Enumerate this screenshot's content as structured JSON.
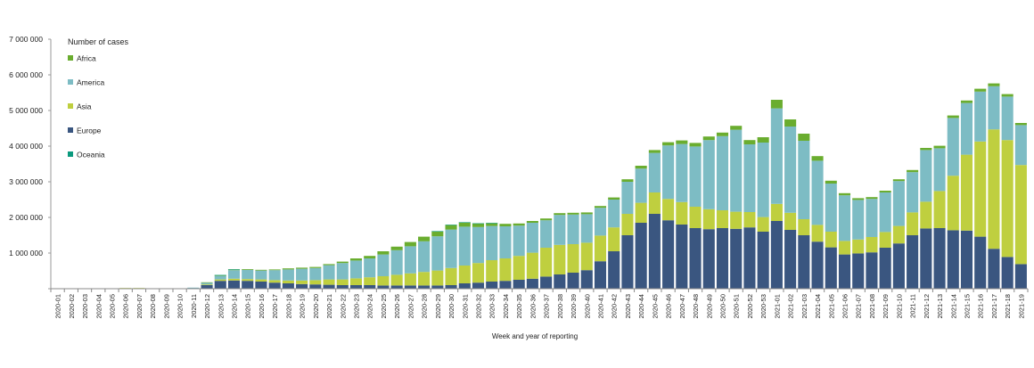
{
  "chart_data": {
    "type": "bar",
    "stacked": true,
    "title": "",
    "xlabel": "Week and year of reporting",
    "ylabel": "",
    "ylim": [
      0,
      7000000
    ],
    "yticks": [
      0,
      1000000,
      2000000,
      3000000,
      4000000,
      5000000,
      6000000,
      7000000
    ],
    "ytick_labels": [
      "",
      "1 000 000",
      "2 000 000",
      "3 000 000",
      "4 000 000",
      "5 000 000",
      "6 000 000",
      "7 000 000"
    ],
    "legend_title": "Number of cases",
    "legend_position": "top-left",
    "colors": {
      "Europe": "#3a5680",
      "Asia": "#bfcf3f",
      "America": "#7dbcc4",
      "Africa": "#6aad2f",
      "Oceania": "#0b9a7e"
    },
    "legend_order": [
      "Africa",
      "America",
      "Asia",
      "Europe",
      "Oceania"
    ],
    "categories": [
      "2020-01",
      "2020-02",
      "2020-03",
      "2020-04",
      "2020-05",
      "2020-06",
      "2020-07",
      "2020-08",
      "2020-09",
      "2020-10",
      "2020-11",
      "2020-12",
      "2020-13",
      "2020-14",
      "2020-15",
      "2020-16",
      "2020-17",
      "2020-18",
      "2020-19",
      "2020-20",
      "2020-21",
      "2020-22",
      "2020-23",
      "2020-24",
      "2020-25",
      "2020-26",
      "2020-27",
      "2020-28",
      "2020-29",
      "2020-30",
      "2020-31",
      "2020-32",
      "2020-33",
      "2020-34",
      "2020-35",
      "2020-36",
      "2020-37",
      "2020-38",
      "2020-39",
      "2020-40",
      "2020-41",
      "2020-42",
      "2020-43",
      "2020-44",
      "2020-45",
      "2020-46",
      "2020-47",
      "2020-48",
      "2020-49",
      "2020-50",
      "2020-51",
      "2020-52",
      "2020-53",
      "2021-01",
      "2021-02",
      "2021-03",
      "2021-04",
      "2021-05",
      "2021-06",
      "2021-07",
      "2021-08",
      "2021-09",
      "2021-10",
      "2021-11",
      "2021-12",
      "2021-13",
      "2021-14",
      "2021-15",
      "2021-16",
      "2021-17",
      "2021-18",
      "2021-19"
    ],
    "x_tick_labels": [
      "2020-01",
      "2020-02",
      "2020-03",
      "2020-04",
      "2020-05",
      "2020-06",
      "2020-07",
      "2020-08",
      "2020-09",
      "2020-10",
      "2020-11",
      "2020-12",
      "2020-13",
      "2020-14",
      "2020-15",
      "2020-16",
      "2020-17",
      "2020-18",
      "2020-19",
      "2020-20",
      "2020-21",
      "2020-22",
      "2020-23",
      "2020-24",
      "2020-25",
      "2020-26",
      "2020-27",
      "2020-28",
      "2020-29",
      "2020-30",
      "2020-31",
      "2020-32",
      "2020-33",
      "2020-34",
      "2020-35",
      "2020-36",
      "2020-37",
      "2020-38",
      "2020-39",
      "2020-40",
      "2020-41",
      "2020-42",
      "2020-43",
      "2020-44",
      "2020-45",
      "2020-46",
      "2020-47",
      "2020-48",
      "2020-49",
      "2020-50",
      "2020-51",
      "2020-52",
      "2020-53",
      "2021-01",
      "2021-02",
      "2021-03",
      "2021-04",
      "2021-05",
      "2021-06",
      "2021-07",
      "2021-08",
      "2021-09",
      "2021-10",
      "2021-11",
      "2021-12",
      "2021-13",
      "2021-14",
      "2021-15",
      "2021-16",
      "2021-17",
      "2021-18",
      "2021-19"
    ],
    "series": [
      {
        "name": "Europe",
        "values": [
          0,
          0,
          0,
          0,
          0,
          0,
          0,
          0,
          0,
          0,
          20000,
          100000,
          220000,
          230000,
          220000,
          200000,
          170000,
          150000,
          130000,
          120000,
          110000,
          100000,
          100000,
          100000,
          90000,
          90000,
          90000,
          90000,
          90000,
          100000,
          150000,
          170000,
          200000,
          220000,
          250000,
          280000,
          340000,
          400000,
          450000,
          520000,
          770000,
          1050000,
          1500000,
          1850000,
          2100000,
          1920000,
          1800000,
          1700000,
          1670000,
          1700000,
          1680000,
          1720000,
          1600000,
          1900000,
          1650000,
          1500000,
          1320000,
          1160000,
          960000,
          990000,
          1020000,
          1150000,
          1270000,
          1500000,
          1690000,
          1700000,
          1640000,
          1630000,
          1460000,
          1120000,
          890000,
          690000
        ]
      },
      {
        "name": "Asia",
        "values": [
          0,
          0,
          0,
          0,
          10000,
          20000,
          20000,
          0,
          0,
          0,
          0,
          20000,
          40000,
          50000,
          50000,
          60000,
          70000,
          80000,
          100000,
          120000,
          150000,
          160000,
          190000,
          220000,
          260000,
          300000,
          340000,
          380000,
          420000,
          480000,
          500000,
          550000,
          600000,
          630000,
          670000,
          730000,
          810000,
          830000,
          800000,
          770000,
          720000,
          670000,
          600000,
          560000,
          600000,
          600000,
          630000,
          600000,
          560000,
          500000,
          480000,
          430000,
          410000,
          480000,
          480000,
          450000,
          470000,
          440000,
          380000,
          390000,
          430000,
          440000,
          490000,
          640000,
          750000,
          1040000,
          1530000,
          2130000,
          2670000,
          3350000,
          3280000,
          2780000
        ]
      },
      {
        "name": "America",
        "values": [
          0,
          0,
          0,
          0,
          0,
          0,
          0,
          0,
          0,
          0,
          10000,
          50000,
          100000,
          240000,
          260000,
          250000,
          280000,
          310000,
          330000,
          340000,
          400000,
          460000,
          500000,
          530000,
          610000,
          690000,
          760000,
          860000,
          960000,
          1080000,
          1090000,
          1010000,
          960000,
          900000,
          850000,
          840000,
          770000,
          840000,
          830000,
          800000,
          780000,
          780000,
          900000,
          960000,
          1110000,
          1500000,
          1630000,
          1690000,
          1940000,
          2080000,
          2300000,
          1900000,
          2090000,
          2680000,
          2420000,
          2200000,
          1800000,
          1350000,
          1280000,
          1110000,
          1070000,
          1110000,
          1260000,
          1130000,
          1450000,
          1200000,
          1620000,
          1450000,
          1400000,
          1210000,
          1220000,
          1120000
        ]
      },
      {
        "name": "Africa",
        "values": [
          0,
          0,
          0,
          0,
          0,
          0,
          0,
          0,
          0,
          0,
          0,
          10000,
          20000,
          20000,
          20000,
          20000,
          20000,
          30000,
          30000,
          30000,
          30000,
          40000,
          60000,
          70000,
          90000,
          100000,
          120000,
          130000,
          140000,
          130000,
          120000,
          100000,
          80000,
          70000,
          60000,
          50000,
          50000,
          50000,
          50000,
          50000,
          50000,
          60000,
          70000,
          80000,
          80000,
          90000,
          100000,
          100000,
          100000,
          100000,
          110000,
          120000,
          150000,
          240000,
          200000,
          200000,
          130000,
          80000,
          60000,
          50000,
          50000,
          50000,
          50000,
          60000,
          60000,
          70000,
          70000,
          70000,
          80000,
          80000,
          70000,
          60000
        ]
      },
      {
        "name": "Oceania",
        "values": [
          0,
          0,
          0,
          0,
          0,
          0,
          0,
          0,
          0,
          0,
          0,
          0,
          5000,
          5000,
          0,
          0,
          0,
          0,
          0,
          0,
          0,
          0,
          0,
          0,
          0,
          0,
          0,
          0,
          5000,
          5000,
          5000,
          5000,
          5000,
          0,
          0,
          0,
          0,
          0,
          0,
          0,
          0,
          0,
          0,
          0,
          0,
          0,
          0,
          0,
          0,
          0,
          0,
          0,
          0,
          0,
          0,
          0,
          0,
          0,
          0,
          0,
          0,
          0,
          0,
          0,
          0,
          0,
          0,
          0,
          0,
          0,
          0,
          0
        ]
      }
    ]
  }
}
